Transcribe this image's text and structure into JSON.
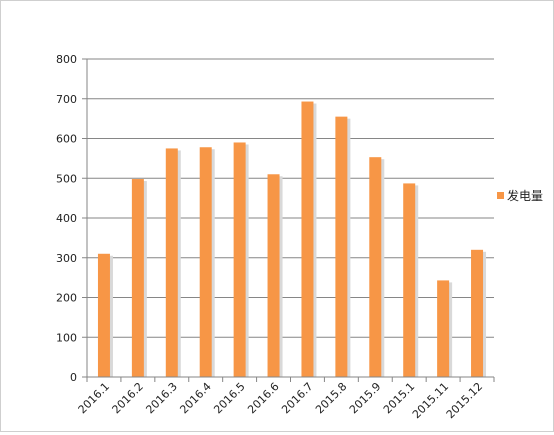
{
  "chart_data": {
    "type": "bar",
    "categories": [
      "2016.1",
      "2016.2",
      "2016.3",
      "2016.4",
      "2016.5",
      "2016.6",
      "2016.7",
      "2015.8",
      "2015.9",
      "2015.1",
      "2015.11",
      "2015.12"
    ],
    "series": [
      {
        "name": "发电量",
        "values": [
          310,
          498,
          575,
          578,
          590,
          510,
          693,
          655,
          553,
          487,
          243,
          320
        ]
      }
    ],
    "ylim": [
      0,
      800
    ],
    "yticks": [
      0,
      100,
      200,
      300,
      400,
      500,
      600,
      700,
      800
    ],
    "grid": true,
    "legend_position": "right",
    "colors": {
      "bar": "#F79646",
      "bar_shadow": "#D9D9D9",
      "grid": "#868686",
      "axis": "#868686"
    }
  }
}
